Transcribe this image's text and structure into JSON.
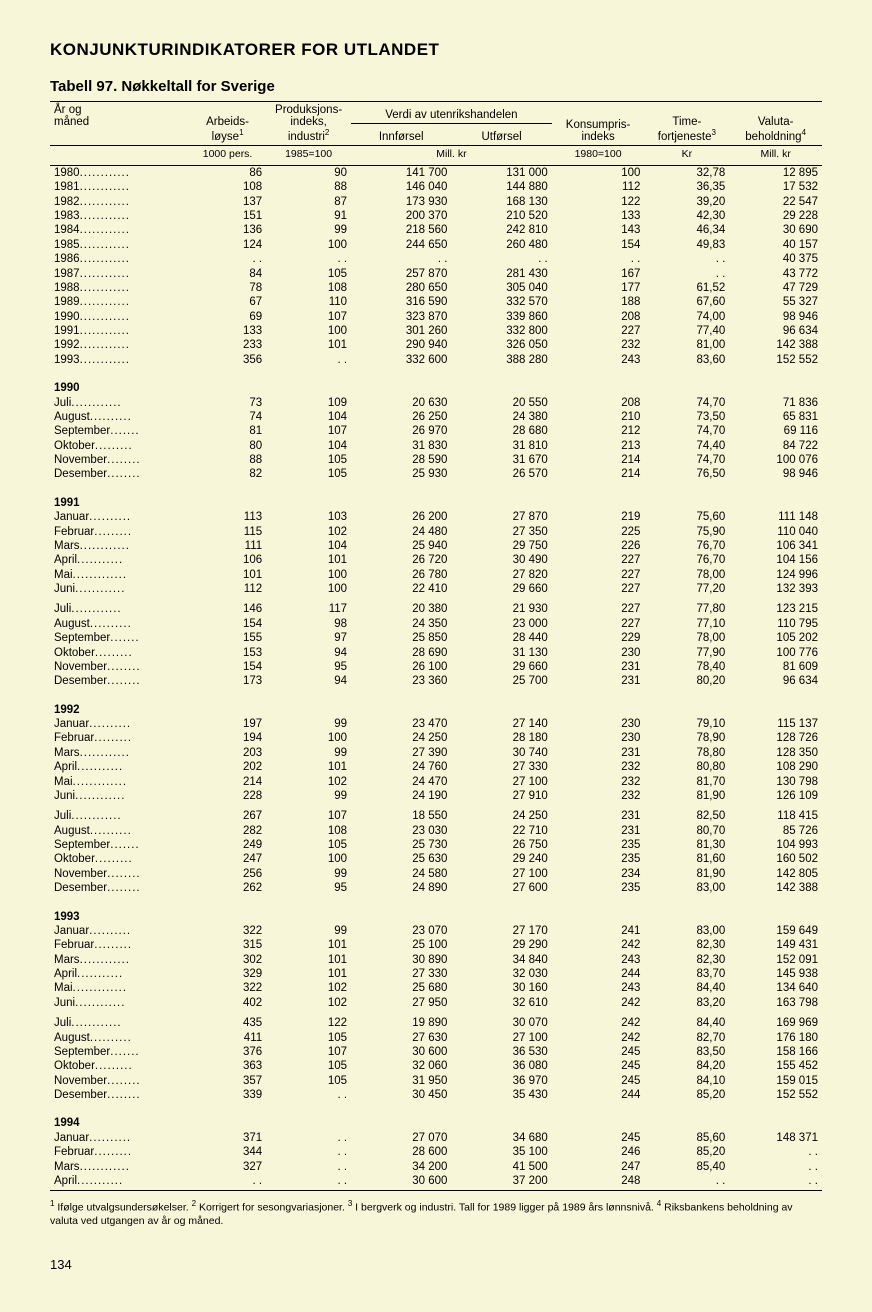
{
  "page_title": "KONJUNKTURINDIKATORER FOR UTLANDET",
  "table_title": "Tabell 97.   Nøkkeltall for Sverige",
  "columns": {
    "year_month": "År og\nmåned",
    "arbeids": "Arbeids-\nløyse",
    "arbeids_sup": "1",
    "prod": "Produksjons-\nindeks,\nindustri",
    "prod_sup": "2",
    "verdi": "Verdi av utenrikshandelen",
    "inn": "Innførsel",
    "ut": "Utførsel",
    "konsum": "Konsumpris-\nindeks",
    "time": "Time-\nfortjeneste",
    "time_sup": "3",
    "valuta": "Valuta-\nbeholdning",
    "valuta_sup": "4"
  },
  "units": {
    "arbeids": "1000 pers.",
    "prod": "1985=100",
    "verdi": "Mill. kr",
    "konsum": "1980=100",
    "time": "Kr",
    "valuta": "Mill. kr"
  },
  "blocks": [
    {
      "type": "rows",
      "rows": [
        {
          "l": "1980",
          "c": [
            "86",
            "90",
            "141 700",
            "131 000",
            "100",
            "32,78",
            "12 895"
          ]
        },
        {
          "l": "1981",
          "c": [
            "108",
            "88",
            "146 040",
            "144 880",
            "112",
            "36,35",
            "17 532"
          ]
        },
        {
          "l": "1982",
          "c": [
            "137",
            "87",
            "173 930",
            "168 130",
            "122",
            "39,20",
            "22 547"
          ]
        },
        {
          "l": "1983",
          "c": [
            "151",
            "91",
            "200 370",
            "210 520",
            "133",
            "42,30",
            "29 228"
          ]
        },
        {
          "l": "1984",
          "c": [
            "136",
            "99",
            "218 560",
            "242 810",
            "143",
            "46,34",
            "30 690"
          ]
        },
        {
          "l": "1985",
          "c": [
            "124",
            "100",
            "244 650",
            "260 480",
            "154",
            "49,83",
            "40 157"
          ]
        },
        {
          "l": "1986",
          "c": [
            ". .",
            ". .",
            ". .",
            ". .",
            ". .",
            ". .",
            "40 375"
          ]
        },
        {
          "l": "1987",
          "c": [
            "84",
            "105",
            "257 870",
            "281 430",
            "167",
            ". .",
            "43 772"
          ]
        },
        {
          "l": "1988",
          "c": [
            "78",
            "108",
            "280 650",
            "305 040",
            "177",
            "61,52",
            "47 729"
          ]
        },
        {
          "l": "1989",
          "c": [
            "67",
            "110",
            "316 590",
            "332 570",
            "188",
            "67,60",
            "55 327"
          ]
        },
        {
          "l": "1990",
          "c": [
            "69",
            "107",
            "323 870",
            "339 860",
            "208",
            "74,00",
            "98 946"
          ]
        },
        {
          "l": "1991",
          "c": [
            "133",
            "100",
            "301 260",
            "332 800",
            "227",
            "77,40",
            "96 634"
          ]
        },
        {
          "l": "1992",
          "c": [
            "233",
            "101",
            "290 940",
            "326 050",
            "232",
            "81,00",
            "142 388"
          ]
        },
        {
          "l": "1993",
          "c": [
            "356",
            ". .",
            "332 600",
            "388 280",
            "243",
            "83,60",
            "152 552"
          ]
        }
      ]
    },
    {
      "type": "section",
      "title": "1990",
      "rows": [
        {
          "l": "Juli",
          "c": [
            "73",
            "109",
            "20 630",
            "20 550",
            "208",
            "74,70",
            "71 836"
          ]
        },
        {
          "l": "August",
          "c": [
            "74",
            "104",
            "26 250",
            "24 380",
            "210",
            "73,50",
            "65 831"
          ]
        },
        {
          "l": "September",
          "c": [
            "81",
            "107",
            "26 970",
            "28 680",
            "212",
            "74,70",
            "69 116"
          ]
        },
        {
          "l": "Oktober",
          "c": [
            "80",
            "104",
            "31 830",
            "31 810",
            "213",
            "74,40",
            "84 722"
          ]
        },
        {
          "l": "November",
          "c": [
            "88",
            "105",
            "28 590",
            "31 670",
            "214",
            "74,70",
            "100 076"
          ]
        },
        {
          "l": "Desember",
          "c": [
            "82",
            "105",
            "25 930",
            "26 570",
            "214",
            "76,50",
            "98 946"
          ]
        }
      ]
    },
    {
      "type": "section",
      "title": "1991",
      "rows": [
        {
          "l": "Januar",
          "c": [
            "113",
            "103",
            "26 200",
            "27 870",
            "219",
            "75,60",
            "111 148"
          ]
        },
        {
          "l": "Februar",
          "c": [
            "115",
            "102",
            "24 480",
            "27 350",
            "225",
            "75,90",
            "110 040"
          ]
        },
        {
          "l": "Mars",
          "c": [
            "111",
            "104",
            "25 940",
            "29 750",
            "226",
            "76,70",
            "106 341"
          ]
        },
        {
          "l": "April",
          "c": [
            "106",
            "101",
            "26 720",
            "30 490",
            "227",
            "76,70",
            "104 156"
          ]
        },
        {
          "l": "Mai",
          "c": [
            "101",
            "100",
            "26 780",
            "27 820",
            "227",
            "78,00",
            "124 996"
          ]
        },
        {
          "l": "Juni",
          "c": [
            "112",
            "100",
            "22 410",
            "29 660",
            "227",
            "77,20",
            "132 393"
          ]
        }
      ]
    },
    {
      "type": "rows",
      "rows": [
        {
          "l": "Juli",
          "c": [
            "146",
            "117",
            "20 380",
            "21 930",
            "227",
            "77,80",
            "123 215"
          ]
        },
        {
          "l": "August",
          "c": [
            "154",
            "98",
            "24 350",
            "23 000",
            "227",
            "77,10",
            "110 795"
          ]
        },
        {
          "l": "September",
          "c": [
            "155",
            "97",
            "25 850",
            "28 440",
            "229",
            "78,00",
            "105 202"
          ]
        },
        {
          "l": "Oktober",
          "c": [
            "153",
            "94",
            "28 690",
            "31 130",
            "230",
            "77,90",
            "100 776"
          ]
        },
        {
          "l": "November",
          "c": [
            "154",
            "95",
            "26 100",
            "29 660",
            "231",
            "78,40",
            "81 609"
          ]
        },
        {
          "l": "Desember",
          "c": [
            "173",
            "94",
            "23 360",
            "25 700",
            "231",
            "80,20",
            "96 634"
          ]
        }
      ]
    },
    {
      "type": "section",
      "title": "1992",
      "rows": [
        {
          "l": "Januar",
          "c": [
            "197",
            "99",
            "23 470",
            "27 140",
            "230",
            "79,10",
            "115 137"
          ]
        },
        {
          "l": "Februar",
          "c": [
            "194",
            "100",
            "24 250",
            "28 180",
            "230",
            "78,90",
            "128 726"
          ]
        },
        {
          "l": "Mars",
          "c": [
            "203",
            "99",
            "27 390",
            "30 740",
            "231",
            "78,80",
            "128 350"
          ]
        },
        {
          "l": "April",
          "c": [
            "202",
            "101",
            "24 760",
            "27 330",
            "232",
            "80,80",
            "108 290"
          ]
        },
        {
          "l": "Mai",
          "c": [
            "214",
            "102",
            "24 470",
            "27 100",
            "232",
            "81,70",
            "130 798"
          ]
        },
        {
          "l": "Juni",
          "c": [
            "228",
            "99",
            "24 190",
            "27 910",
            "232",
            "81,90",
            "126 109"
          ]
        }
      ]
    },
    {
      "type": "rows",
      "rows": [
        {
          "l": "Juli",
          "c": [
            "267",
            "107",
            "18 550",
            "24 250",
            "231",
            "82,50",
            "118 415"
          ]
        },
        {
          "l": "August",
          "c": [
            "282",
            "108",
            "23 030",
            "22 710",
            "231",
            "80,70",
            "85 726"
          ]
        },
        {
          "l": "September",
          "c": [
            "249",
            "105",
            "25 730",
            "26 750",
            "235",
            "81,30",
            "104 993"
          ]
        },
        {
          "l": "Oktober",
          "c": [
            "247",
            "100",
            "25 630",
            "29 240",
            "235",
            "81,60",
            "160 502"
          ]
        },
        {
          "l": "November",
          "c": [
            "256",
            "99",
            "24 580",
            "27 100",
            "234",
            "81,90",
            "142 805"
          ]
        },
        {
          "l": "Desember",
          "c": [
            "262",
            "95",
            "24 890",
            "27 600",
            "235",
            "83,00",
            "142 388"
          ]
        }
      ]
    },
    {
      "type": "section",
      "title": "1993",
      "rows": [
        {
          "l": "Januar",
          "c": [
            "322",
            "99",
            "23 070",
            "27 170",
            "241",
            "83,00",
            "159 649"
          ]
        },
        {
          "l": "Februar",
          "c": [
            "315",
            "101",
            "25 100",
            "29 290",
            "242",
            "82,30",
            "149 431"
          ]
        },
        {
          "l": "Mars",
          "c": [
            "302",
            "101",
            "30 890",
            "34 840",
            "243",
            "82,30",
            "152 091"
          ]
        },
        {
          "l": "April",
          "c": [
            "329",
            "101",
            "27 330",
            "32 030",
            "244",
            "83,70",
            "145 938"
          ]
        },
        {
          "l": "Mai",
          "c": [
            "322",
            "102",
            "25 680",
            "30 160",
            "243",
            "84,40",
            "134 640"
          ]
        },
        {
          "l": "Juni",
          "c": [
            "402",
            "102",
            "27 950",
            "32 610",
            "242",
            "83,20",
            "163 798"
          ]
        }
      ]
    },
    {
      "type": "rows",
      "rows": [
        {
          "l": "Juli",
          "c": [
            "435",
            "122",
            "19 890",
            "30 070",
            "242",
            "84,40",
            "169 969"
          ]
        },
        {
          "l": "August",
          "c": [
            "411",
            "105",
            "27 630",
            "27 100",
            "242",
            "82,70",
            "176 180"
          ]
        },
        {
          "l": "September",
          "c": [
            "376",
            "107",
            "30 600",
            "36 530",
            "245",
            "83,50",
            "158 166"
          ]
        },
        {
          "l": "Oktober",
          "c": [
            "363",
            "105",
            "32 060",
            "36 080",
            "245",
            "84,20",
            "155 452"
          ]
        },
        {
          "l": "November",
          "c": [
            "357",
            "105",
            "31 950",
            "36 970",
            "245",
            "84,10",
            "159 015"
          ]
        },
        {
          "l": "Desember",
          "c": [
            "339",
            ". .",
            "30 450",
            "35 430",
            "244",
            "85,20",
            "152 552"
          ]
        }
      ]
    },
    {
      "type": "section",
      "title": "1994",
      "rows": [
        {
          "l": "Januar",
          "c": [
            "371",
            ". .",
            "27 070",
            "34 680",
            "245",
            "85,60",
            "148 371"
          ]
        },
        {
          "l": "Februar",
          "c": [
            "344",
            ". .",
            "28 600",
            "35 100",
            "246",
            "85,20",
            ". ."
          ]
        },
        {
          "l": "Mars",
          "c": [
            "327",
            ". .",
            "34 200",
            "41 500",
            "247",
            "85,40",
            ". ."
          ]
        },
        {
          "l": "April",
          "c": [
            ". .",
            ". .",
            "30 600",
            "37 200",
            "248",
            ". .",
            ". ."
          ]
        }
      ]
    }
  ],
  "footnote_parts": {
    "n1sup": "1",
    "n1": " Ifølge utvalgsundersøkelser. ",
    "n2sup": "2",
    "n2": " Korrigert for sesongvariasjoner. ",
    "n3sup": "3",
    "n3": " I bergverk og industri. Tall for 1989 ligger på 1989 års lønnsnivå. ",
    "n4sup": "4",
    "n4": " Riksbankens beholdning av valuta ved utgangen av år og måned."
  },
  "page_number": "134",
  "col_widths": [
    "18%",
    "10%",
    "11%",
    "13%",
    "13%",
    "12%",
    "11%",
    "12%"
  ],
  "bg_color": "#f8f6d8",
  "text_color": "#000000"
}
